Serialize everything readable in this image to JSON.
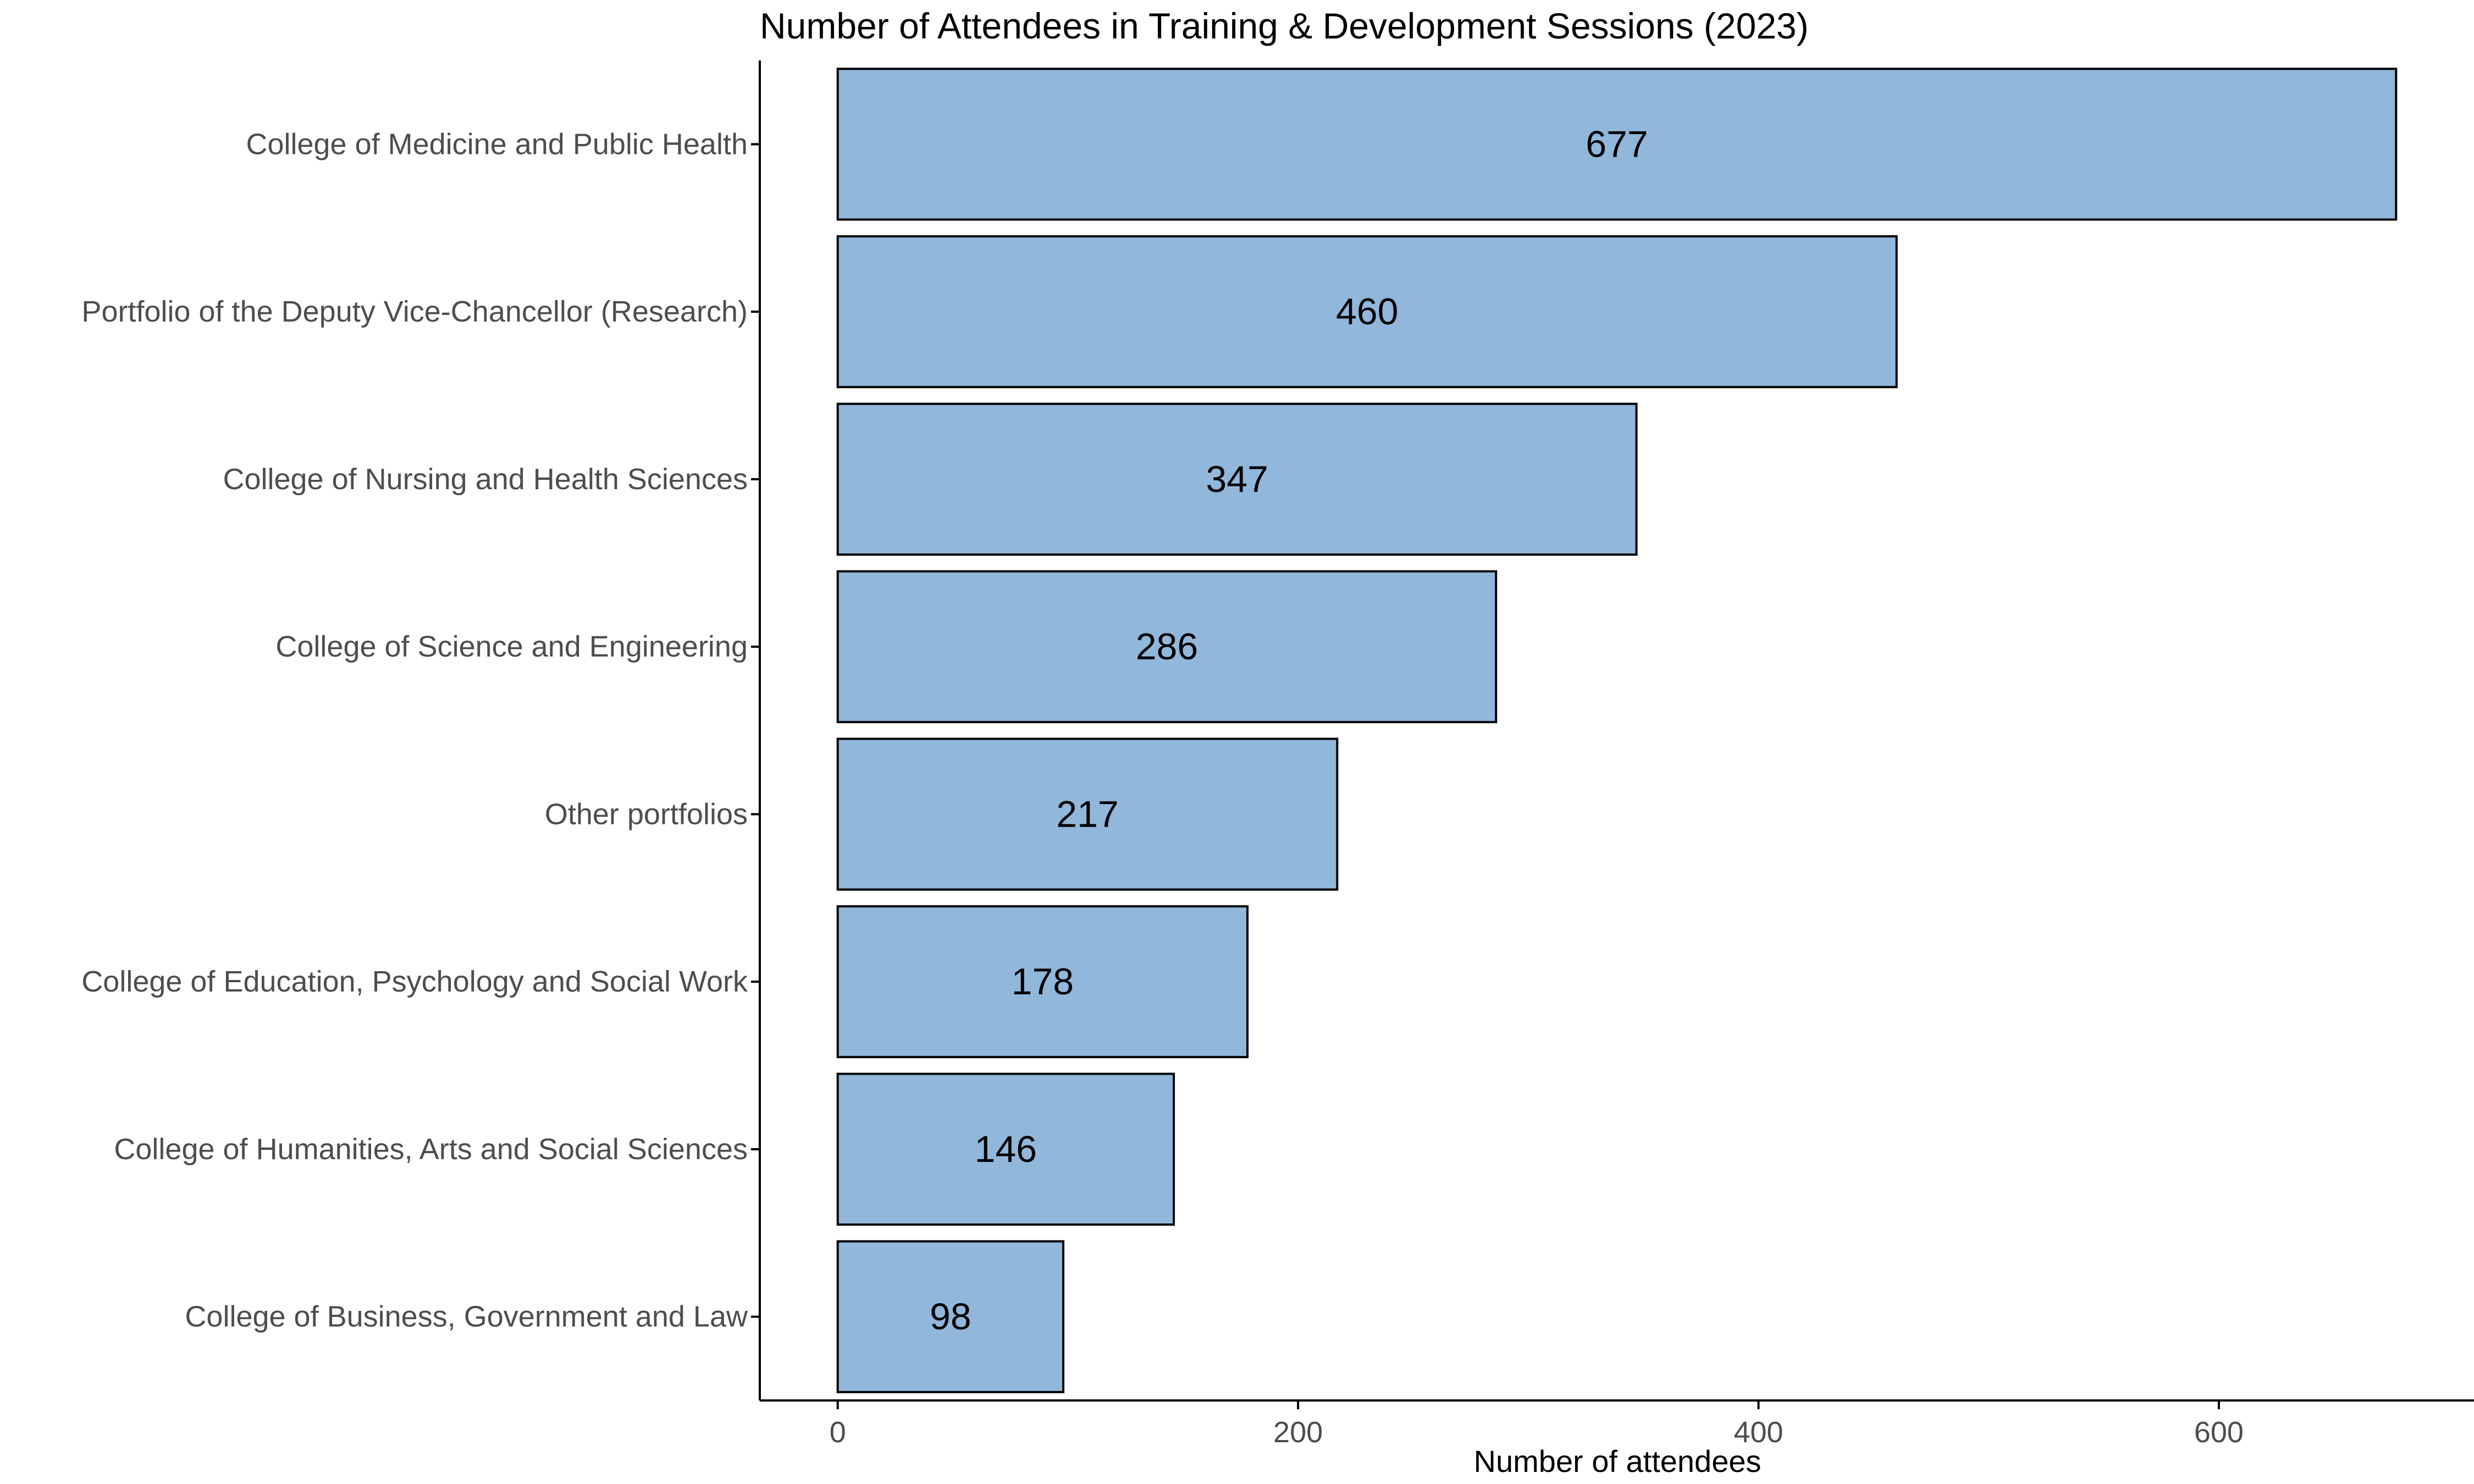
{
  "chart_data": {
    "type": "bar",
    "orientation": "horizontal",
    "title": "Number of Attendees in Training & Development Sessions (2023)",
    "xlabel": "Number of attendees",
    "ylabel": "",
    "categories": [
      "College of Medicine and Public Health",
      "Portfolio of the Deputy Vice-Chancellor (Research)",
      "College of Nursing and Health Sciences",
      "College of Science and Engineering",
      "Other portfolios",
      "College of Education, Psychology and Social Work",
      "College of Humanities, Arts and Social Sciences",
      "College of Business, Government and Law"
    ],
    "values": [
      677,
      460,
      347,
      286,
      217,
      178,
      146,
      98
    ],
    "data_labels": [
      "677",
      "460",
      "347",
      "286",
      "217",
      "178",
      "146",
      "98"
    ],
    "xticks": [
      0,
      200,
      400,
      600
    ],
    "xtick_labels": [
      "0",
      "200",
      "400",
      "600"
    ],
    "xlim": [
      -33.85,
      710.85
    ],
    "grid": false,
    "legend": "none",
    "colors": {
      "bar_fill": "#91b7db",
      "bar_stroke": "#000000",
      "axis": "#000000"
    }
  }
}
